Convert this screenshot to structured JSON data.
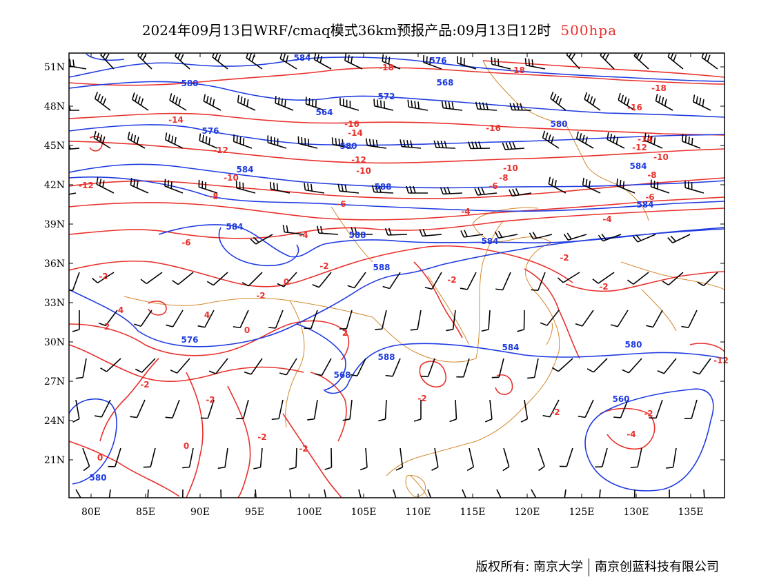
{
  "title": {
    "product": "2024年09月13日WRF/cmaq模式36km预报产品:09月13日12时",
    "level": "500hpa"
  },
  "footer": {
    "copyright": "版权所有: 南京大学",
    "company": "南京创蓝科技有限公司"
  },
  "axes": {
    "lat_labels": [
      "51N",
      "48N",
      "45N",
      "42N",
      "39N",
      "36N",
      "33N",
      "30N",
      "27N",
      "24N",
      "21N"
    ],
    "lon_labels": [
      "80E",
      "85E",
      "90E",
      "95E",
      "100E",
      "105E",
      "110E",
      "115E",
      "120E",
      "125E",
      "130E",
      "135E"
    ]
  },
  "colors": {
    "height_contour": "#1f3be0",
    "temperature_contour": "#e8312c",
    "coastline": "#d2882d",
    "wind_barb": "#000000",
    "level_text": "#e8312c"
  },
  "contour_labels": {
    "height": [
      "584",
      "580",
      "572",
      "568",
      "564",
      "576",
      "580",
      "584",
      "588",
      "584",
      "588",
      "588",
      "584",
      "588",
      "584",
      "580",
      "576",
      "568",
      "560",
      "580",
      "576",
      "580",
      "584",
      "584"
    ],
    "temperature": [
      "-18",
      "-18",
      "-18",
      "-16",
      "-16",
      "-16",
      "-14",
      "-14",
      "-14",
      "-12",
      "-12",
      "-12",
      "-12",
      "-10",
      "-10",
      "-10",
      "-10",
      "-8",
      "-8",
      "-8",
      "-6",
      "-6",
      "-6",
      "-6",
      "-4",
      "-4",
      "-4",
      "-2",
      "-2",
      "-2",
      "-2",
      "-2",
      "-2",
      "-2",
      "-2",
      "-2",
      "-2",
      "0",
      "0",
      "0",
      "0",
      "2",
      "2",
      "4",
      "4",
      "-2",
      "-4",
      "-2",
      "-2",
      "-12"
    ]
  }
}
